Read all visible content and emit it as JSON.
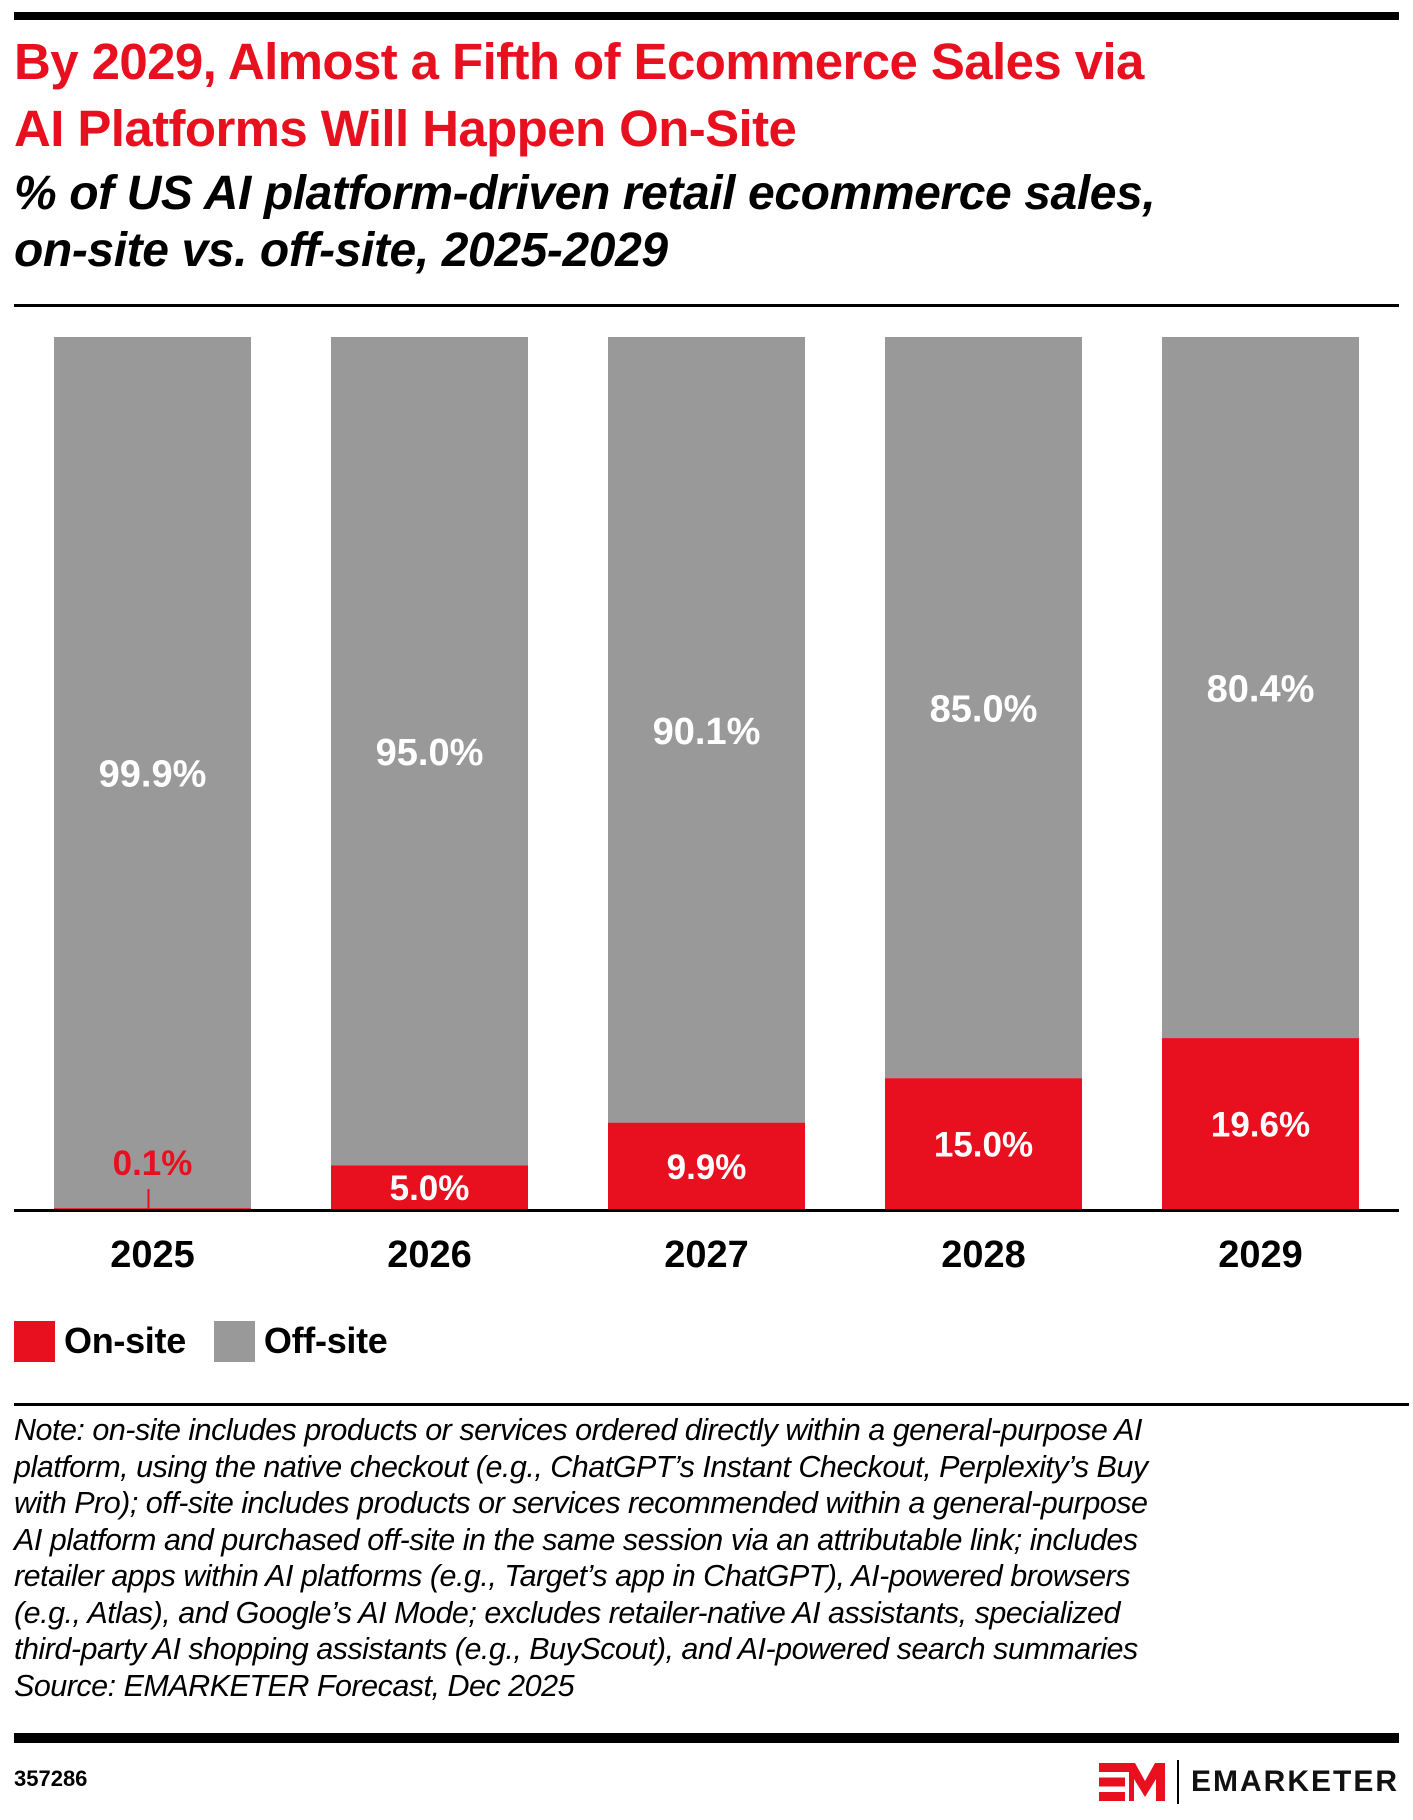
{
  "header": {
    "title_lines": [
      "By 2029, Almost a Fifth of Ecommerce Sales via",
      "AI Platforms Will Happen On-Site"
    ],
    "subtitle_lines": [
      "% of US AI platform-driven retail ecommerce sales,",
      "on-site vs. off-site, 2025-2029"
    ]
  },
  "colors": {
    "title": "#E8101E",
    "on_site": "#E8101E",
    "off_site": "#999999",
    "axis": "#000000",
    "label_on_bar": "#FFFFFF"
  },
  "chart_data": {
    "type": "bar",
    "stacked": true,
    "orientation": "vertical",
    "percent_stacked": true,
    "title": "By 2029, Almost a Fifth of Ecommerce Sales via AI Platforms Will Happen On-Site",
    "subtitle": "% of US AI platform-driven retail ecommerce sales, on-site vs. off-site, 2025-2029",
    "xlabel": "",
    "ylabel": "",
    "ylim": [
      0,
      100
    ],
    "grid": false,
    "y_axis_visible": false,
    "categories": [
      "2025",
      "2026",
      "2027",
      "2028",
      "2029"
    ],
    "series": [
      {
        "name": "On-site",
        "color": "#E8101E",
        "values": [
          0.1,
          5.0,
          9.9,
          15.0,
          19.6
        ],
        "labels": [
          "0.1%",
          "5.0%",
          "9.9%",
          "15.0%",
          "19.6%"
        ]
      },
      {
        "name": "Off-site",
        "color": "#999999",
        "values": [
          99.9,
          95.0,
          90.1,
          85.0,
          80.4
        ],
        "labels": [
          "99.9%",
          "95.0%",
          "90.1%",
          "85.0%",
          "80.4%"
        ]
      }
    ],
    "legend": {
      "position": "bottom-left",
      "entries": [
        "On-site",
        "Off-site"
      ]
    }
  },
  "legend": [
    {
      "label": "On-site",
      "color": "#E8101E"
    },
    {
      "label": "Off-site",
      "color": "#999999"
    }
  ],
  "note": {
    "lines": [
      "Note: on-site includes products or services ordered directly within a general-purpose AI",
      "platform, using the native checkout (e.g., ChatGPT’s Instant Checkout, Perplexity’s Buy",
      "with Pro); off-site includes products or services recommended within a general-purpose",
      "AI platform and purchased off-site in the same session via an attributable link; includes",
      "retailer apps within AI platforms (e.g., Target’s app in ChatGPT), AI-powered browsers",
      "(e.g., Atlas), and Google’s AI Mode; excludes retailer-native AI assistants, specialized",
      "third-party AI shopping assistants (e.g., BuyScout), and AI-powered search summaries",
      "Source: EMARKETER Forecast, Dec 2025"
    ]
  },
  "footer": {
    "chart_id": "357286",
    "brand": "EMARKETER",
    "logo_icon": "em-logo-icon"
  }
}
